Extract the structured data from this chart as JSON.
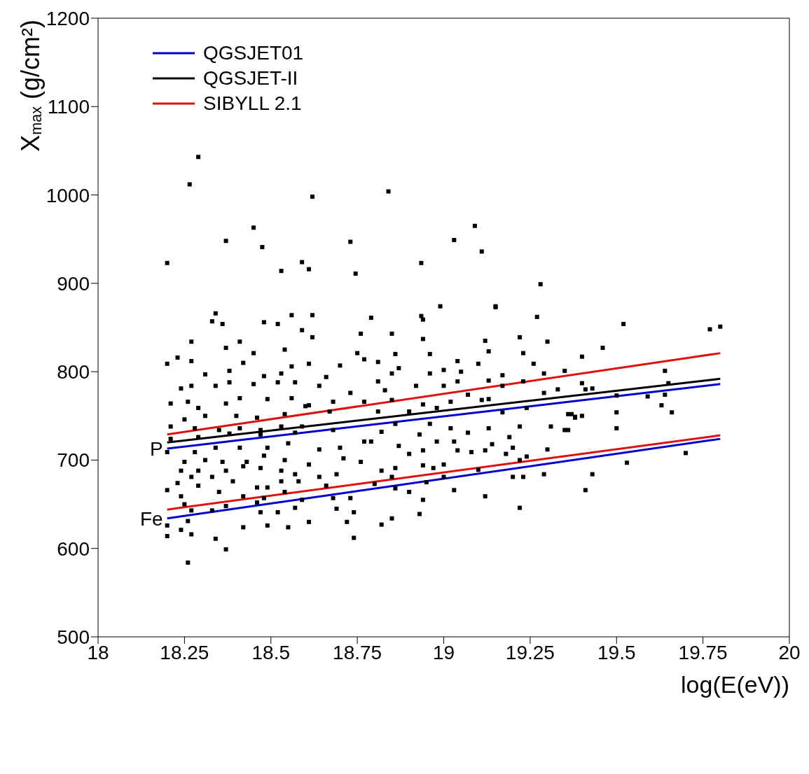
{
  "chart_data": {
    "type": "scatter",
    "xlabel": "log(E(eV))",
    "ylabel": "X$_{max}$ (g/cm²)",
    "xlim": [
      18,
      20
    ],
    "ylim": [
      500,
      1200
    ],
    "xticks": [
      18,
      18.25,
      18.5,
      18.75,
      19,
      19.25,
      19.5,
      19.75,
      20
    ],
    "yticks": [
      500,
      600,
      700,
      800,
      900,
      1000,
      1100,
      1200
    ],
    "legend": "top left",
    "marker": "square",
    "line_style": "solid",
    "annotations": [
      {
        "text": "P",
        "x": 18.2,
        "y": 713
      },
      {
        "text": "Fe",
        "x": 18.2,
        "y": 634
      }
    ],
    "series": [
      {
        "color": "#000000",
        "x": [
          18.2,
          18.265,
          18.29,
          18.37,
          18.45,
          18.475,
          18.53,
          18.59,
          18.61,
          18.62,
          18.73,
          18.745,
          18.84,
          18.935,
          18.935,
          19.03,
          19.09,
          19.11,
          19.15,
          19.28,
          19.52,
          18.34,
          18.33,
          18.36,
          18.48,
          18.52,
          18.56,
          18.62,
          18.59,
          18.62,
          18.27,
          18.37,
          18.41,
          18.45,
          18.54,
          18.2,
          18.23,
          18.27,
          18.42,
          18.56,
          18.61,
          18.31,
          18.38,
          18.48,
          18.53,
          18.66,
          18.7,
          18.24,
          18.27,
          18.34,
          18.38,
          18.45,
          18.52,
          18.57,
          18.64,
          18.76,
          18.75,
          18.77,
          18.21,
          18.26,
          18.29,
          18.37,
          18.41,
          18.49,
          18.56,
          18.61,
          18.68,
          18.73,
          18.77,
          18.25,
          18.31,
          18.4,
          18.46,
          18.54,
          18.6,
          18.67,
          18.21,
          18.28,
          18.35,
          18.41,
          18.47,
          18.53,
          18.59,
          18.21,
          18.29,
          18.38,
          18.47,
          18.57,
          18.68,
          18.2,
          18.28,
          18.34,
          18.41,
          18.49,
          18.55,
          18.64,
          18.7,
          18.77,
          18.25,
          18.31,
          18.36,
          18.43,
          18.48,
          18.54,
          18.61,
          18.71,
          18.76,
          18.24,
          18.29,
          18.37,
          18.42,
          18.47,
          18.53,
          18.57,
          18.64,
          18.69,
          18.23,
          18.27,
          18.33,
          18.39,
          18.46,
          18.49,
          18.53,
          18.58,
          18.66,
          18.2,
          18.24,
          18.29,
          18.35,
          18.42,
          18.48,
          18.54,
          18.59,
          18.68,
          18.73,
          18.25,
          18.37,
          18.46,
          18.57,
          18.27,
          18.33,
          18.47,
          18.52,
          18.69,
          18.74,
          18.2,
          18.26,
          18.42,
          18.49,
          18.55,
          18.61,
          18.72,
          18.2,
          18.24,
          18.27,
          18.34,
          18.74,
          18.37,
          18.26,
          18.99,
          19.15,
          19.27,
          18.94,
          18.79,
          18.85,
          18.94,
          19.12,
          19.22,
          19.3,
          18.86,
          18.96,
          19.13,
          19.23,
          18.81,
          19.04,
          19.1,
          19.26,
          18.87,
          19,
          19.35,
          18.85,
          18.96,
          19.05,
          19.17,
          19.29,
          18.81,
          19.04,
          19.13,
          19.23,
          18.92,
          19,
          19.17,
          19.33,
          18.83,
          19.07,
          19.13,
          19.29,
          18.85,
          18.94,
          19.02,
          19.11,
          18.81,
          18.9,
          18.98,
          19.17,
          19.24,
          19.37,
          19.38,
          18.86,
          18.96,
          19.02,
          19.13,
          19.22,
          19.31,
          19.35,
          18.82,
          18.93,
          19.07,
          19.19,
          18.79,
          18.87,
          18.98,
          19.03,
          19.14,
          19.2,
          18.9,
          18.94,
          19.04,
          19.08,
          19.12,
          19.18,
          19.3,
          18.94,
          19,
          19.22,
          19.24,
          18.82,
          18.86,
          18.97,
          19.1,
          18.85,
          19,
          19.2,
          19.23,
          19.29,
          18.8,
          18.95,
          18.86,
          19.03,
          18.9,
          18.94,
          19.12,
          19.22,
          18.85,
          18.93,
          18.82,
          19.77,
          19.8,
          19.46,
          19.4,
          19.64,
          19.4,
          19.41,
          19.43,
          19.5,
          19.59,
          19.64,
          19.65,
          19.63,
          19.66,
          19.5,
          19.36,
          19.38,
          19.4,
          19.36,
          19.5,
          19.7,
          19.53,
          19.43,
          19.41
        ],
        "values": [
          923,
          1012,
          1043,
          948,
          963,
          941,
          914,
          924,
          916,
          998,
          947,
          911,
          1004,
          863,
          923,
          949,
          965,
          936,
          873,
          899,
          854,
          866,
          857,
          854,
          856,
          854,
          864,
          864,
          847,
          839,
          834,
          827,
          834,
          821,
          825,
          809,
          816,
          812,
          810,
          806,
          809,
          797,
          801,
          795,
          798,
          794,
          807,
          781,
          784,
          784,
          788,
          786,
          788,
          788,
          784,
          843,
          821,
          814,
          764,
          766,
          759,
          764,
          770,
          769,
          770,
          762,
          766,
          776,
          766,
          746,
          750,
          750,
          748,
          752,
          761,
          755,
          738,
          736,
          734,
          736,
          734,
          738,
          738,
          724,
          726,
          730,
          729,
          731,
          734,
          709,
          709,
          714,
          714,
          714,
          719,
          712,
          714,
          721,
          698,
          700,
          698,
          698,
          705,
          700,
          695,
          702,
          698,
          688,
          688,
          688,
          693,
          691,
          688,
          684,
          681,
          684,
          674,
          681,
          681,
          676,
          669,
          669,
          676,
          676,
          671,
          666,
          659,
          671,
          664,
          659,
          657,
          664,
          655,
          657,
          657,
          650,
          648,
          652,
          646,
          643,
          643,
          641,
          641,
          645,
          641,
          626,
          631,
          624,
          626,
          624,
          630,
          630,
          614,
          621,
          616,
          611,
          612,
          599,
          584,
          874,
          874,
          862,
          859,
          861,
          843,
          837,
          835,
          839,
          834,
          820,
          820,
          823,
          821,
          811,
          812,
          809,
          809,
          804,
          802,
          801,
          798,
          798,
          800,
          796,
          798,
          789,
          789,
          790,
          789,
          784,
          784,
          784,
          780,
          779,
          774,
          769,
          776,
          768,
          763,
          766,
          768,
          755,
          755,
          759,
          754,
          759,
          752,
          749,
          741,
          741,
          736,
          736,
          738,
          738,
          734,
          732,
          729,
          731,
          726,
          721,
          716,
          721,
          721,
          718,
          714,
          707,
          711,
          711,
          709,
          711,
          707,
          712,
          694,
          695,
          700,
          704,
          688,
          691,
          691,
          689,
          681,
          681,
          681,
          681,
          684,
          673,
          675,
          668,
          666,
          664,
          655,
          659,
          646,
          634,
          639,
          627,
          848,
          851,
          827,
          817,
          801,
          787,
          780,
          781,
          773,
          772,
          774,
          787,
          762,
          754,
          754,
          752,
          748,
          750,
          734,
          736,
          708,
          697,
          684,
          666
        ]
      },
      {
        "type": "line",
        "name": "QGSJET01",
        "marker": "none",
        "color": "#0000cc",
        "x": [
          18.2,
          19.8
        ],
        "values": [
          713,
          786
        ]
      },
      {
        "type": "line",
        "name": "QGSJET-II",
        "marker": "none",
        "color": "#000000",
        "x": [
          18.2,
          19.8
        ],
        "values": [
          720,
          792
        ]
      },
      {
        "type": "line",
        "name": "SIBYLL 2.1",
        "marker": "none",
        "color": "#dd1111",
        "x": [
          18.2,
          19.8
        ],
        "values": [
          729,
          821
        ]
      },
      {
        "type": "line",
        "marker": "none",
        "color": "#0000cc",
        "x": [
          18.2,
          19.8
        ],
        "values": [
          634,
          724
        ]
      },
      {
        "type": "line",
        "marker": "none",
        "color": "#dd1111",
        "x": [
          18.2,
          19.8
        ],
        "values": [
          644,
          728
        ]
      }
    ]
  }
}
